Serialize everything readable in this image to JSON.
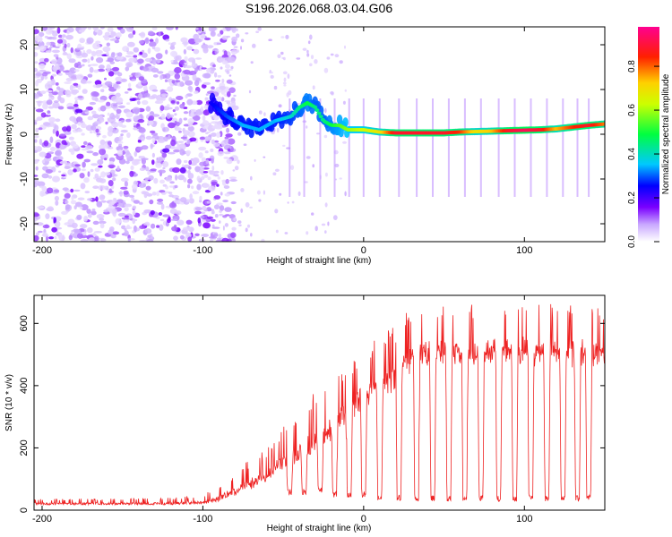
{
  "title": "S196.2026.068.03.04.G06",
  "chart_data": [
    {
      "type": "heatmap",
      "name": "spectrogram",
      "xlabel": "Height of straight line (km)",
      "ylabel": "Frequency (Hz)",
      "xlim": [
        -205,
        150
      ],
      "ylim": [
        -24,
        24
      ],
      "x_ticks": [
        -200,
        -100,
        0,
        100
      ],
      "y_ticks": [
        20,
        10,
        0,
        -10,
        -20
      ],
      "colorbar": {
        "label": "Normalized spectral amplitude",
        "range": [
          0,
          0.98
        ],
        "ticks": [
          0.0,
          0.2,
          0.4,
          0.6,
          0.8
        ],
        "colors": [
          "#ffffff",
          "#7a00ff",
          "#0000ff",
          "#00d0ff",
          "#00ff00",
          "#ffff00",
          "#ff0000",
          "#ff0090"
        ]
      },
      "ridge_x": [
        -95,
        -85,
        -75,
        -65,
        -55,
        -45,
        -40,
        -35,
        -30,
        -25,
        -20,
        -15,
        -10,
        0,
        10,
        20,
        30,
        40,
        50,
        60,
        70,
        80,
        90,
        100,
        110,
        120,
        130,
        140,
        150
      ],
      "ridge_freq_hz": [
        7,
        4,
        2,
        1,
        3,
        4,
        6,
        7,
        6,
        3,
        2,
        2,
        1,
        1,
        0.5,
        0.3,
        0.3,
        0.3,
        0.3,
        0.5,
        0.6,
        0.7,
        0.8,
        0.9,
        1.0,
        1.2,
        1.6,
        2.0,
        2.3
      ],
      "ridge_amplitude": [
        0.25,
        0.3,
        0.35,
        0.35,
        0.35,
        0.4,
        0.45,
        0.5,
        0.45,
        0.45,
        0.5,
        0.55,
        0.6,
        0.65,
        0.7,
        0.9,
        0.9,
        0.9,
        0.9,
        0.85,
        0.7,
        0.75,
        0.9,
        0.95,
        0.9,
        0.75,
        0.85,
        0.9,
        0.8
      ]
    },
    {
      "type": "line",
      "name": "snr",
      "xlabel": "Height of straight line (km)",
      "ylabel": "SNR (10 * v/v)",
      "xlim": [
        -205,
        150
      ],
      "ylim": [
        0,
        690
      ],
      "x_ticks": [
        -200,
        -100,
        0,
        100
      ],
      "y_ticks": [
        0,
        200,
        400,
        600
      ],
      "color": "#ee2222",
      "envelope": {
        "x": [
          -205,
          -120,
          -100,
          -90,
          -80,
          -70,
          -60,
          -50,
          -40,
          -30,
          -20,
          -10,
          0,
          10,
          20,
          30,
          40,
          60,
          80,
          100,
          120,
          150
        ],
        "base": [
          18,
          18,
          20,
          30,
          50,
          70,
          100,
          140,
          160,
          200,
          240,
          300,
          350,
          380,
          420,
          480,
          500,
          490,
          500,
          500,
          500,
          490
        ],
        "peak": [
          35,
          40,
          50,
          80,
          120,
          170,
          200,
          270,
          330,
          380,
          430,
          470,
          530,
          560,
          600,
          660,
          670,
          660,
          670,
          670,
          670,
          650
        ]
      },
      "dropout_x": [
        -46,
        -37,
        -27,
        -18,
        -9,
        0,
        10,
        22,
        33,
        43,
        53,
        63,
        73,
        84,
        94,
        104,
        114,
        124,
        133,
        140
      ],
      "dropout_depth": [
        50,
        50,
        55,
        40,
        40,
        40,
        30,
        30,
        28,
        28,
        28,
        28,
        28,
        28,
        28,
        28,
        28,
        28,
        28,
        28
      ]
    }
  ]
}
